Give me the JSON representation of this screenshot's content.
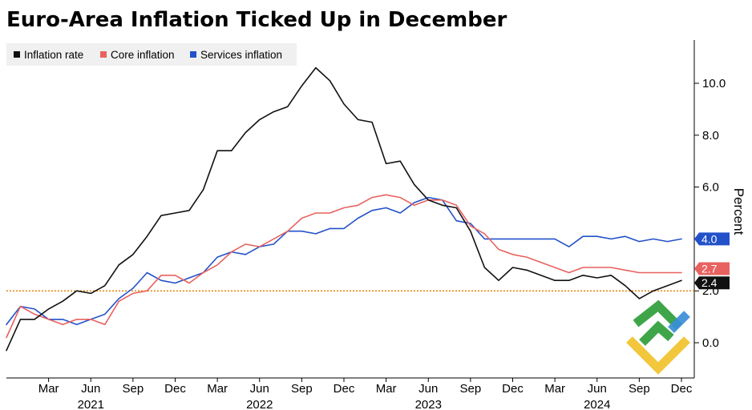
{
  "chart_data": {
    "type": "line",
    "title": "Euro-Area Inflation Ticked Up in December",
    "ylabel": "Percent",
    "xlabel": "",
    "ylim": [
      -1.4,
      11.5
    ],
    "yticks": [
      0.0,
      2.0,
      4.0,
      6.0,
      8.0,
      10.0
    ],
    "ytick_labels": [
      "0.0",
      "2.0",
      "4.0",
      "6.0",
      "8.0",
      "10.0"
    ],
    "x_start": "2020-12",
    "x_end": "2024-12",
    "x_ticks": [
      {
        "month_index": 3,
        "label": "Mar"
      },
      {
        "month_index": 6,
        "label": "Jun"
      },
      {
        "month_index": 9,
        "label": "Sep"
      },
      {
        "month_index": 12,
        "label": "Dec"
      },
      {
        "month_index": 15,
        "label": "Mar"
      },
      {
        "month_index": 18,
        "label": "Jun"
      },
      {
        "month_index": 21,
        "label": "Sep"
      },
      {
        "month_index": 24,
        "label": "Dec"
      },
      {
        "month_index": 27,
        "label": "Mar"
      },
      {
        "month_index": 30,
        "label": "Jun"
      },
      {
        "month_index": 33,
        "label": "Sep"
      },
      {
        "month_index": 36,
        "label": "Dec"
      },
      {
        "month_index": 39,
        "label": "Mar"
      },
      {
        "month_index": 42,
        "label": "Jun"
      },
      {
        "month_index": 45,
        "label": "Sep"
      },
      {
        "month_index": 48,
        "label": "Dec"
      }
    ],
    "year_labels": [
      {
        "month_index": 6,
        "label": "2021"
      },
      {
        "month_index": 18,
        "label": "2022"
      },
      {
        "month_index": 30,
        "label": "2023"
      },
      {
        "month_index": 42,
        "label": "2024"
      }
    ],
    "reference_line": {
      "value": 2.0,
      "color": "#e8830c",
      "style": "dotted"
    },
    "legend_position": "top-left",
    "series": [
      {
        "name": "Inflation rate",
        "color": "#111111",
        "end_label": "2.4",
        "values": [
          -0.3,
          0.9,
          0.9,
          1.3,
          1.6,
          2.0,
          1.9,
          2.2,
          3.0,
          3.4,
          4.1,
          4.9,
          5.0,
          5.1,
          5.9,
          7.4,
          7.4,
          8.1,
          8.6,
          8.9,
          9.1,
          9.9,
          10.6,
          10.1,
          9.2,
          8.6,
          8.5,
          6.9,
          7.0,
          6.1,
          5.5,
          5.3,
          5.2,
          4.3,
          2.9,
          2.4,
          2.9,
          2.8,
          2.6,
          2.4,
          2.4,
          2.6,
          2.5,
          2.6,
          2.2,
          1.7,
          2.0,
          2.2,
          2.4
        ]
      },
      {
        "name": "Core inflation",
        "color": "#e8625f",
        "end_label": "2.7",
        "values": [
          0.2,
          1.4,
          1.1,
          0.9,
          0.7,
          0.9,
          0.9,
          0.7,
          1.6,
          1.9,
          2.0,
          2.6,
          2.6,
          2.3,
          2.7,
          3.0,
          3.5,
          3.8,
          3.7,
          4.0,
          4.3,
          4.8,
          5.0,
          5.0,
          5.2,
          5.3,
          5.6,
          5.7,
          5.6,
          5.3,
          5.5,
          5.5,
          5.3,
          4.5,
          4.2,
          3.6,
          3.4,
          3.3,
          3.1,
          2.9,
          2.7,
          2.9,
          2.9,
          2.9,
          2.8,
          2.7,
          2.7,
          2.7,
          2.7
        ]
      },
      {
        "name": "Services inflation",
        "color": "#2251c9",
        "end_label": "4.0",
        "values": [
          0.7,
          1.4,
          1.3,
          0.9,
          0.9,
          0.7,
          0.9,
          1.1,
          1.7,
          2.1,
          2.7,
          2.4,
          2.3,
          2.5,
          2.7,
          3.3,
          3.5,
          3.4,
          3.7,
          3.8,
          4.3,
          4.3,
          4.2,
          4.4,
          4.4,
          4.8,
          5.1,
          5.2,
          5.0,
          5.4,
          5.6,
          5.5,
          4.7,
          4.6,
          4.0,
          4.0,
          4.0,
          4.0,
          4.0,
          4.0,
          3.7,
          4.1,
          4.1,
          4.0,
          4.1,
          3.9,
          4.0,
          3.9,
          4.0
        ]
      }
    ]
  }
}
